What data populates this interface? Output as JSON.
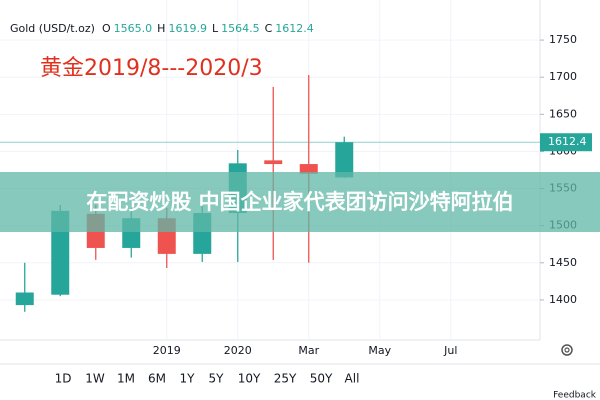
{
  "chart_data": {
    "type": "candlestick",
    "symbol": "Gold (USD/t.oz)",
    "header_fields": [
      {
        "key": "O",
        "value": 1565,
        "label": "1565.0"
      },
      {
        "key": "H",
        "value": 1619.9,
        "label": "1619.9"
      },
      {
        "key": "L",
        "value": 1564.5,
        "label": "1564.5"
      },
      {
        "key": "C",
        "value": 1612.4,
        "label": "1612.4"
      }
    ],
    "annotation": "黄金2019/8---2020/3",
    "overlay_text": "在配资炒股 中国企业家代表团访问沙特阿拉伯",
    "categories": [
      null,
      null,
      null,
      null,
      "2019",
      null,
      "2020",
      null,
      "Mar",
      null,
      "May",
      null,
      "Jul"
    ],
    "open": [
      1393,
      1407,
      1516,
      1470,
      1510,
      1462,
      1517,
      1588,
      1583,
      1565,
      null,
      null,
      null
    ],
    "high": [
      1450,
      1528,
      1528,
      1524,
      1524,
      1528,
      1602,
      1687,
      1703,
      1619.9,
      null,
      null,
      null
    ],
    "low": [
      1384,
      1405,
      1454,
      1457,
      1443,
      1451,
      1451,
      1454,
      1450,
      1564.5,
      null,
      null,
      null
    ],
    "close": [
      1410,
      1520,
      1470,
      1510,
      1462,
      1517,
      1584,
      1583,
      1570,
      1612.4,
      null,
      null,
      null
    ],
    "up_color": "#26a69a",
    "down_color": "#ef5350",
    "last_price": 1612.4,
    "ylim": [
      1346,
      1804
    ],
    "yticks": [
      1400,
      1450,
      1500,
      1550,
      1600,
      1650,
      1700,
      1750
    ],
    "grid": true,
    "ranges": [
      "1D",
      "1W",
      "1M",
      "6M",
      "1Y",
      "5Y",
      "10Y",
      "25Y",
      "50Y",
      "All"
    ],
    "feedback": "Feedback"
  }
}
